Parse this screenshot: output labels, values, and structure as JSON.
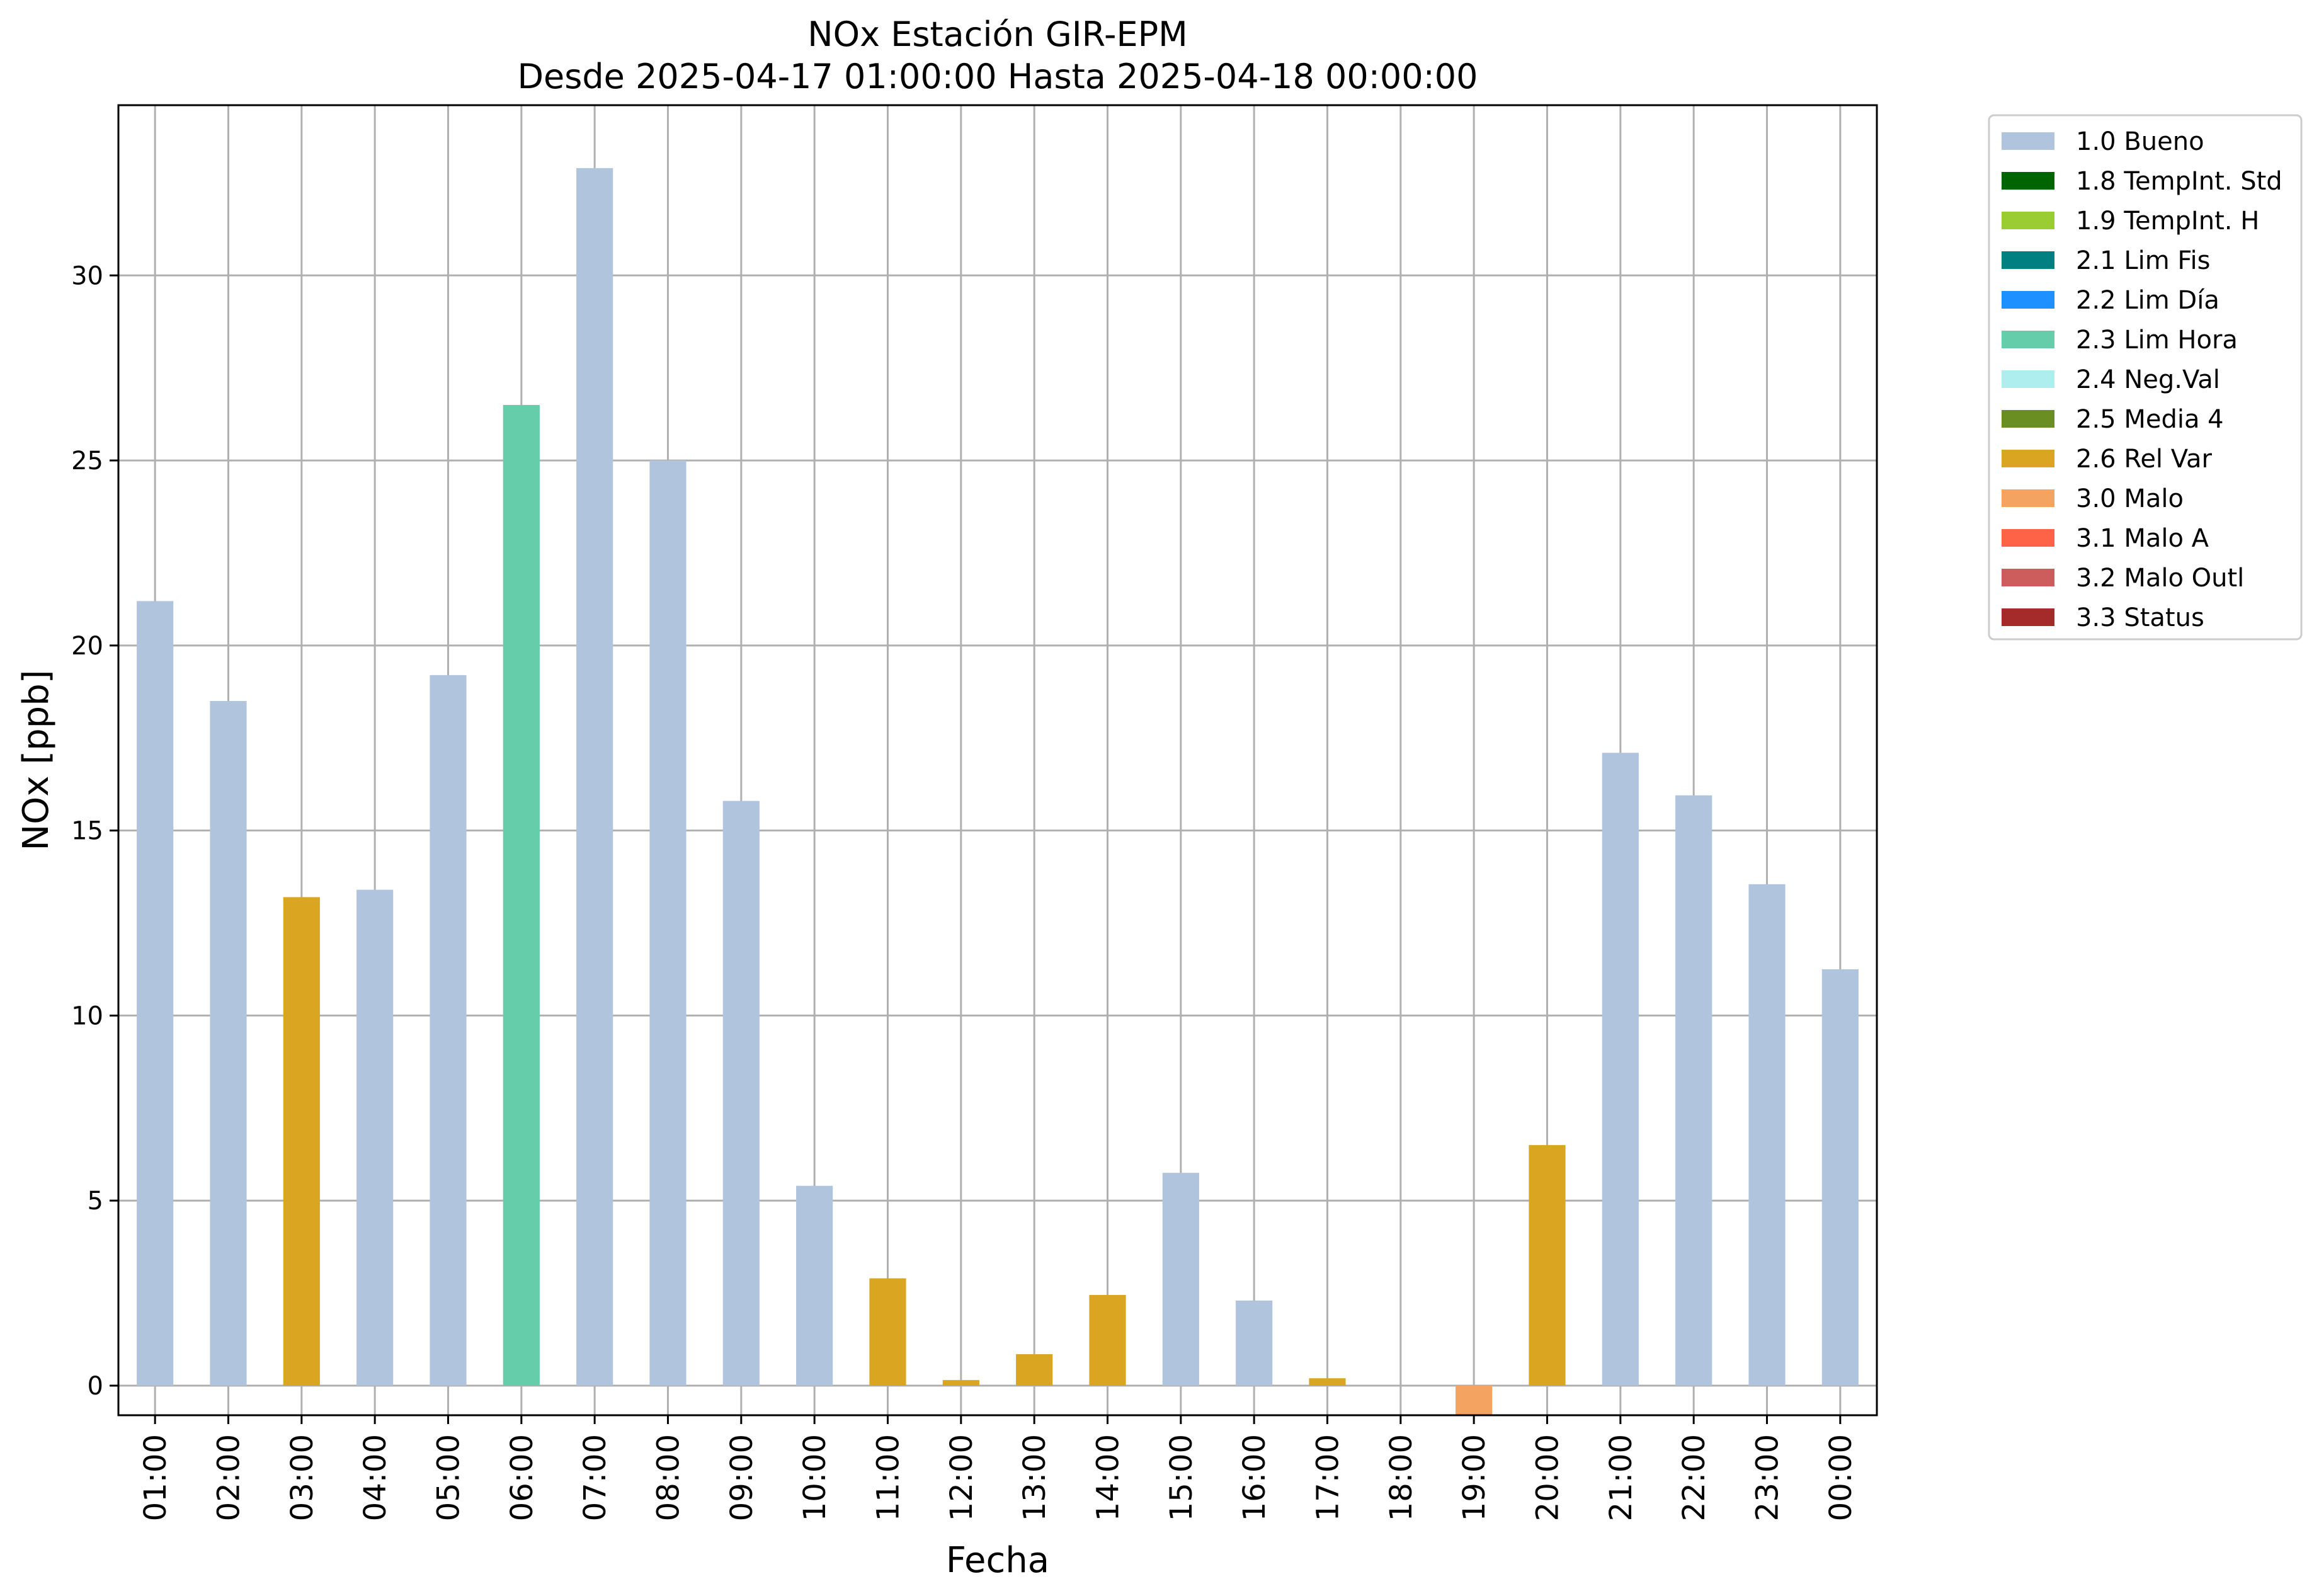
{
  "chart_data": {
    "type": "bar",
    "title": "NOx Estación GIR-EPM",
    "subtitle": "Desde 2025-04-17 01:00:00 Hasta 2025-04-18 00:00:00",
    "xlabel": "Fecha",
    "ylabel": "NOx [ppb]",
    "ylim": [
      -0.8,
      34.6
    ],
    "yticks": [
      0,
      5,
      10,
      15,
      20,
      25,
      30
    ],
    "grid": true,
    "legend_position": "outside-top-right",
    "categories": [
      "01:00",
      "02:00",
      "03:00",
      "04:00",
      "05:00",
      "06:00",
      "07:00",
      "08:00",
      "09:00",
      "10:00",
      "11:00",
      "12:00",
      "13:00",
      "14:00",
      "15:00",
      "16:00",
      "17:00",
      "18:00",
      "19:00",
      "20:00",
      "21:00",
      "22:00",
      "23:00",
      "00:00"
    ],
    "values": [
      21.2,
      18.5,
      13.2,
      13.4,
      19.2,
      26.5,
      32.9,
      25.0,
      15.8,
      5.4,
      2.9,
      0.15,
      0.85,
      2.45,
      5.75,
      2.3,
      0.2,
      0.0,
      -0.8,
      6.5,
      17.1,
      15.95,
      13.55,
      11.25
    ],
    "flags": [
      "1.0 Bueno",
      "1.0 Bueno",
      "2.6 Rel Var",
      "1.0 Bueno",
      "1.0 Bueno",
      "2.3 Lim Hora",
      "1.0 Bueno",
      "1.0 Bueno",
      "1.0 Bueno",
      "1.0 Bueno",
      "2.6 Rel Var",
      "2.6 Rel Var",
      "2.6 Rel Var",
      "2.6 Rel Var",
      "1.0 Bueno",
      "1.0 Bueno",
      "2.6 Rel Var",
      "1.0 Bueno",
      "3.0 Malo",
      "2.6 Rel Var",
      "1.0 Bueno",
      "1.0 Bueno",
      "1.0 Bueno",
      "1.0 Bueno"
    ],
    "legend": [
      {
        "label": "1.0 Bueno",
        "color": "#b0c4de"
      },
      {
        "label": "1.8 TempInt. Std",
        "color": "#006400"
      },
      {
        "label": "1.9 TempInt. H",
        "color": "#9acd32"
      },
      {
        "label": "2.1 Lim Fis",
        "color": "#008080"
      },
      {
        "label": "2.2 Lim Día",
        "color": "#1e90ff"
      },
      {
        "label": "2.3 Lim Hora",
        "color": "#66cdaa"
      },
      {
        "label": "2.4 Neg.Val",
        "color": "#afeeee"
      },
      {
        "label": "2.5 Media 4",
        "color": "#6b8e23"
      },
      {
        "label": "2.6 Rel Var",
        "color": "#daa520"
      },
      {
        "label": "3.0 Malo",
        "color": "#f4a460"
      },
      {
        "label": "3.1 Malo A",
        "color": "#ff6347"
      },
      {
        "label": "3.2 Malo Outl",
        "color": "#cd5c5c"
      },
      {
        "label": "3.3 Status",
        "color": "#a52a2a"
      }
    ]
  }
}
